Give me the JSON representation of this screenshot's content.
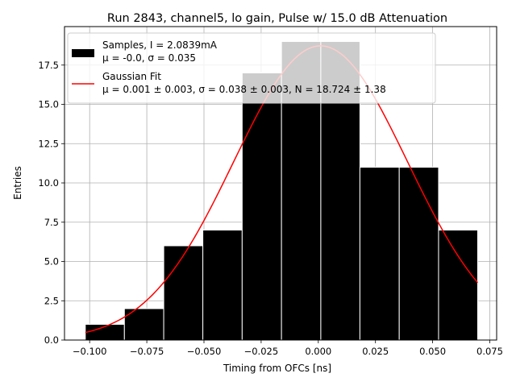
{
  "chart_data": {
    "type": "bar",
    "title": "Run 2843, channel5, lo gain, Pulse w/ 15.0 dB Attenuation",
    "xlabel": "Timing from OFCs [ns]",
    "ylabel": "Entries",
    "xlim": [
      -0.111,
      0.078
    ],
    "ylim": [
      0.0,
      19.95
    ],
    "grid": true,
    "legend_position": "top-left",
    "x_ticks": [
      "−0.100",
      "−0.075",
      "−0.050",
      "−0.025",
      "0.000",
      "0.025",
      "0.050",
      "0.075"
    ],
    "x_tick_values": [
      -0.1,
      -0.075,
      -0.05,
      -0.025,
      0.0,
      0.025,
      0.05,
      0.075
    ],
    "y_ticks": [
      "0.0",
      "2.5",
      "5.0",
      "7.5",
      "10.0",
      "12.5",
      "15.0",
      "17.5"
    ],
    "y_tick_values": [
      0.0,
      2.5,
      5.0,
      7.5,
      10.0,
      12.5,
      15.0,
      17.5
    ],
    "histogram": {
      "bin_edges": [
        -0.1019,
        -0.0848,
        -0.0676,
        -0.0505,
        -0.0333,
        -0.0161,
        0.0011,
        0.0182,
        0.0354,
        0.0526,
        0.0697
      ],
      "counts": [
        1,
        2,
        6,
        7,
        17,
        19,
        19,
        11,
        11,
        7
      ],
      "color": "#000000",
      "edge_color": "#ffffff"
    },
    "fit": {
      "mu": 0.001,
      "sigma": 0.038,
      "N": 18.724,
      "x_range": [
        -0.1019,
        0.0697
      ],
      "color": "#ff0000"
    },
    "legend": [
      {
        "kind": "bar",
        "line1": "Samples, I = 2.0839mA",
        "line2_prefix": "μ = -0.0, σ = 0.035"
      },
      {
        "kind": "line",
        "line1": "Gaussian Fit",
        "line2": "μ = 0.001 ± 0.003, σ = 0.038 ± 0.003, N = 18.724 ± 1.38"
      }
    ]
  }
}
